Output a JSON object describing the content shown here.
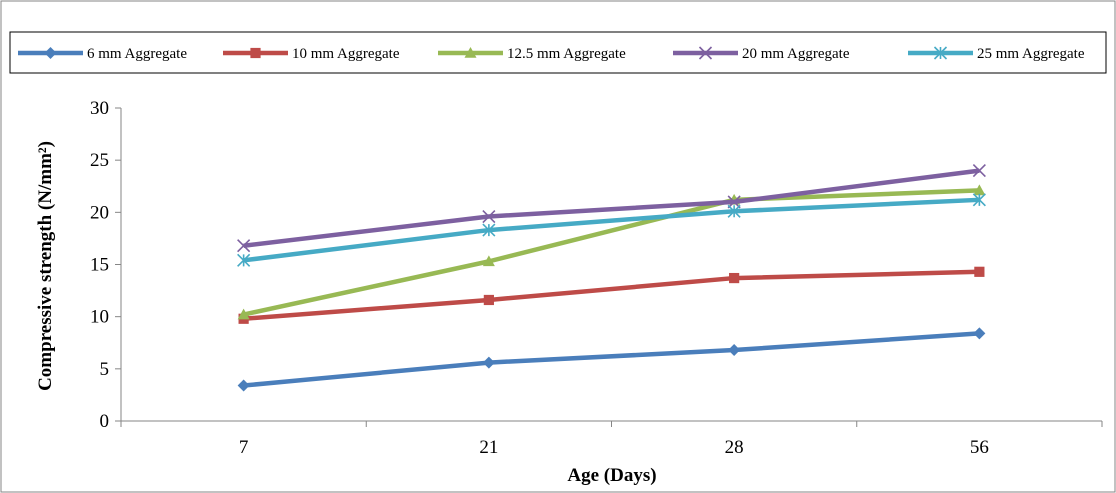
{
  "chart_data": {
    "type": "line",
    "categories": [
      "7",
      "21",
      "28",
      "56"
    ],
    "xlabel": "Age (Days)",
    "ylabel": "Compressive strength (N/mm²)",
    "ylim": [
      0,
      30
    ],
    "yticks": [
      0,
      5,
      10,
      15,
      20,
      25,
      30
    ],
    "grid": false,
    "legend_position": "top",
    "series": [
      {
        "name": "6 mm Aggregate",
        "color": "#4a7ebb",
        "marker": "diamond",
        "values": [
          3.4,
          5.6,
          6.8,
          8.4
        ]
      },
      {
        "name": "10 mm Aggregate",
        "color": "#be4b48",
        "marker": "square",
        "values": [
          9.8,
          11.6,
          13.7,
          14.3
        ]
      },
      {
        "name": "12.5 mm Aggregate",
        "color": "#98b954",
        "marker": "triangle",
        "values": [
          10.2,
          15.3,
          21.2,
          22.1
        ]
      },
      {
        "name": "20 mm Aggregate",
        "color": "#7d60a0",
        "marker": "x",
        "values": [
          16.8,
          19.6,
          21.0,
          24.0
        ]
      },
      {
        "name": "25 mm Aggregate",
        "color": "#46aac5",
        "marker": "asterisk",
        "values": [
          15.4,
          18.3,
          20.1,
          21.2
        ]
      }
    ]
  }
}
